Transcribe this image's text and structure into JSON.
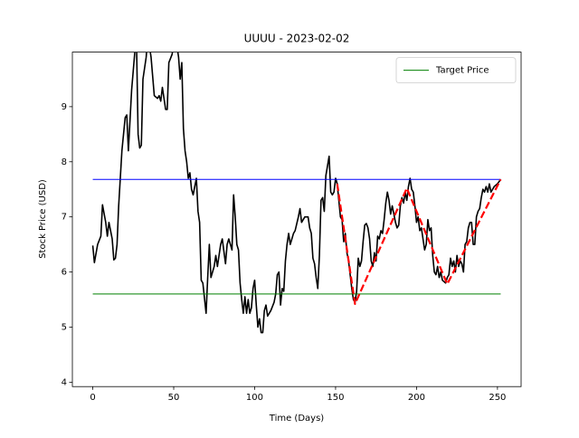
{
  "chart_data": {
    "type": "line",
    "title": "UUUU - 2023-02-02",
    "x_label": "Time (Days)",
    "y_label": "Stock Price (USD)",
    "xlim": [
      -12.6,
      264.6
    ],
    "ylim": [
      3.92,
      9.99
    ],
    "xticks": [
      0,
      50,
      100,
      150,
      200,
      250
    ],
    "yticks": [
      4,
      5,
      6,
      7,
      8,
      9
    ],
    "legend": "upper right",
    "series": [
      {
        "color": "#000000",
        "width": 1.6,
        "x": [
          0,
          1,
          3,
          5,
          6,
          8,
          9,
          10,
          12,
          13,
          14,
          15,
          16,
          18,
          20,
          21,
          22,
          24,
          26,
          27,
          28,
          29,
          30,
          31,
          33,
          34,
          36,
          38,
          40,
          41,
          42,
          43,
          45,
          46,
          47,
          49,
          51,
          53,
          54,
          55,
          56,
          57,
          58,
          59,
          60,
          61,
          62,
          64,
          65,
          66,
          67,
          68,
          70,
          71,
          72,
          73,
          75,
          76,
          77,
          79,
          80,
          82,
          83,
          84,
          86,
          87,
          88,
          89,
          90,
          91,
          92,
          93,
          94,
          95,
          96,
          97,
          98,
          99,
          100,
          101,
          102,
          103,
          104,
          105,
          106,
          107,
          108,
          110,
          112,
          113,
          114,
          115,
          116,
          117,
          118,
          119,
          120,
          121,
          122,
          124,
          125,
          127,
          128,
          129,
          130,
          131,
          133,
          134,
          135,
          136,
          137,
          138,
          139,
          140,
          141,
          142,
          143,
          144,
          146,
          147,
          148,
          149,
          150,
          151,
          152,
          153,
          154,
          155,
          156,
          157,
          158,
          159,
          160,
          161,
          162,
          163,
          164,
          165,
          166,
          167,
          168,
          169,
          170,
          171,
          172,
          173,
          174,
          175,
          176,
          177,
          178,
          179,
          180,
          181,
          182,
          183,
          184,
          185,
          187,
          188,
          189,
          190,
          191,
          192,
          193,
          194,
          195,
          196,
          197,
          198,
          199,
          200,
          201,
          202,
          203,
          205,
          206,
          207,
          208,
          209,
          210,
          211,
          212,
          213,
          214,
          215,
          216,
          218,
          219,
          220,
          221,
          222,
          223,
          224,
          225,
          226,
          227,
          228,
          229,
          230,
          231,
          232,
          233,
          234,
          235,
          236,
          237,
          238,
          239,
          240,
          241,
          242,
          243,
          244,
          245,
          246,
          248,
          250,
          252
        ],
        "values": [
          6.48,
          6.17,
          6.5,
          6.65,
          7.22,
          6.9,
          6.65,
          6.9,
          6.6,
          6.22,
          6.25,
          6.5,
          7.2,
          8.2,
          8.8,
          8.85,
          8.2,
          9.3,
          10.0,
          10.2,
          8.5,
          8.25,
          8.3,
          9.5,
          9.9,
          10.3,
          9.9,
          9.2,
          9.15,
          9.2,
          9.1,
          9.35,
          8.95,
          8.95,
          9.8,
          9.95,
          10.3,
          9.9,
          9.5,
          9.8,
          8.6,
          8.2,
          8.0,
          7.7,
          7.8,
          7.5,
          7.4,
          7.7,
          7.1,
          6.9,
          5.85,
          5.8,
          5.25,
          5.9,
          6.5,
          5.9,
          6.1,
          6.3,
          6.1,
          6.5,
          6.6,
          6.15,
          6.5,
          6.6,
          6.4,
          7.4,
          7.0,
          6.5,
          6.4,
          5.8,
          5.5,
          5.25,
          5.55,
          5.25,
          5.5,
          5.25,
          5.35,
          5.7,
          5.85,
          5.4,
          5.0,
          5.15,
          4.9,
          4.9,
          5.3,
          5.4,
          5.2,
          5.3,
          5.45,
          5.6,
          5.95,
          6.0,
          5.4,
          5.7,
          5.65,
          6.2,
          6.5,
          6.7,
          6.5,
          6.7,
          6.75,
          7.0,
          7.15,
          6.9,
          6.95,
          7.0,
          7.0,
          6.8,
          6.7,
          6.25,
          6.15,
          5.9,
          5.7,
          6.3,
          7.3,
          7.35,
          7.1,
          7.75,
          8.1,
          7.45,
          7.4,
          7.45,
          7.7,
          7.6,
          7.3,
          7.0,
          6.95,
          6.55,
          6.7,
          6.35,
          6.2,
          5.95,
          5.7,
          5.5,
          5.45,
          5.65,
          6.25,
          6.1,
          6.2,
          6.55,
          6.85,
          6.88,
          6.8,
          6.6,
          6.2,
          6.1,
          6.35,
          6.2,
          6.65,
          6.6,
          6.75,
          6.7,
          6.95,
          7.25,
          7.45,
          7.3,
          7.05,
          7.2,
          6.9,
          6.8,
          6.85,
          7.2,
          7.35,
          7.25,
          7.45,
          7.3,
          7.55,
          7.7,
          7.5,
          7.45,
          7.2,
          6.9,
          7.0,
          6.75,
          6.8,
          6.4,
          6.5,
          6.95,
          6.75,
          6.8,
          6.3,
          6.0,
          5.95,
          6.1,
          5.9,
          6.0,
          5.85,
          5.8,
          5.9,
          5.95,
          6.25,
          6.1,
          6.2,
          6.0,
          6.3,
          6.1,
          6.2,
          6.15,
          6.0,
          6.5,
          6.55,
          6.8,
          6.9,
          6.9,
          6.5,
          6.5,
          7.0,
          7.1,
          7.15,
          7.35,
          7.5,
          7.45,
          7.55,
          7.45,
          7.6,
          7.45,
          7.55,
          7.6,
          7.68
        ]
      },
      {
        "color": "#0000ff",
        "width": 1,
        "x": [
          0,
          252
        ],
        "values": [
          7.68,
          7.68
        ]
      },
      {
        "name": "Target Price",
        "color": "#008000",
        "width": 1,
        "x": [
          0,
          252
        ],
        "values": [
          5.6,
          5.6
        ]
      },
      {
        "color": "#ff0000",
        "width": 2.2,
        "dashed": true,
        "x": [
          151,
          162,
          194,
          219,
          252
        ],
        "values": [
          7.6,
          5.42,
          7.52,
          5.78,
          7.68
        ]
      }
    ]
  }
}
